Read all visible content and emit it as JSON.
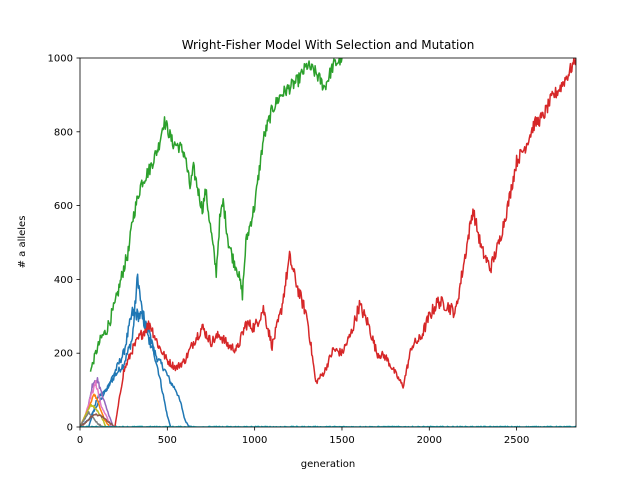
{
  "chart_data": {
    "type": "line",
    "title": "Wright-Fisher Model With Selection and Mutation",
    "xlabel": "generation",
    "ylabel": "# a alleles",
    "xlim": [
      0,
      2840
    ],
    "ylim": [
      0,
      1000
    ],
    "xticks": [
      0,
      500,
      1000,
      1500,
      2000,
      2500
    ],
    "yticks": [
      0,
      200,
      400,
      600,
      800,
      1000
    ],
    "grid": false,
    "colors": {
      "blue": "#1f77b4",
      "orange": "#ff7f0e",
      "green": "#2ca02c",
      "red": "#d62728",
      "purple": "#9467bd",
      "brown": "#8c564b",
      "pink": "#e377c2",
      "gray": "#7f7f7f",
      "olive": "#bcbd22",
      "cyan": "#17becf"
    },
    "series": [
      {
        "color_key": "blue",
        "x": [
          0,
          50,
          100,
          150,
          200,
          250,
          300,
          330,
          350,
          380,
          400,
          430,
          450,
          480,
          500,
          520,
          550,
          580,
          600,
          620,
          640
        ],
        "y": [
          0,
          20,
          60,
          100,
          140,
          170,
          240,
          410,
          330,
          260,
          230,
          200,
          180,
          160,
          140,
          120,
          100,
          60,
          20,
          5,
          0
        ]
      },
      {
        "color_key": "blue",
        "x": [
          50,
          100,
          150,
          200,
          250,
          300,
          350,
          400,
          450,
          500,
          520
        ],
        "y": [
          0,
          80,
          100,
          150,
          200,
          310,
          300,
          250,
          150,
          30,
          0
        ]
      },
      {
        "color_key": "green",
        "x": [
          60,
          90,
          120,
          150,
          200,
          250,
          280,
          300,
          330,
          350,
          400,
          450,
          480,
          500,
          530,
          570,
          600,
          630,
          650,
          700,
          720,
          750,
          780,
          800,
          820,
          850,
          880,
          900,
          930,
          950,
          1000,
          1050,
          1100,
          1150,
          1200,
          1250,
          1300,
          1350,
          1400,
          1450,
          1500
        ],
        "y": [
          150,
          200,
          240,
          260,
          330,
          430,
          480,
          560,
          620,
          660,
          700,
          760,
          830,
          810,
          770,
          760,
          740,
          650,
          700,
          590,
          640,
          530,
          420,
          560,
          610,
          500,
          450,
          430,
          360,
          500,
          600,
          780,
          860,
          900,
          920,
          940,
          980,
          960,
          920,
          980,
          1000
        ]
      },
      {
        "color_key": "red",
        "x": [
          200,
          250,
          300,
          350,
          400,
          450,
          500,
          550,
          600,
          650,
          700,
          750,
          800,
          850,
          900,
          950,
          1000,
          1050,
          1100,
          1150,
          1200,
          1250,
          1300,
          1350,
          1400,
          1450,
          1500,
          1550,
          1600,
          1650,
          1700,
          1750,
          1800,
          1850,
          1900,
          1950,
          2000,
          2050,
          2100,
          2150,
          2200,
          2250,
          2300,
          2350,
          2400,
          2450,
          2500,
          2550,
          2600,
          2650,
          2700,
          2750,
          2800,
          2840
        ],
        "y": [
          0,
          150,
          210,
          250,
          280,
          220,
          180,
          160,
          180,
          230,
          270,
          230,
          250,
          220,
          210,
          280,
          270,
          320,
          220,
          310,
          460,
          370,
          300,
          120,
          150,
          210,
          200,
          250,
          330,
          280,
          200,
          190,
          150,
          110,
          220,
          240,
          300,
          340,
          330,
          310,
          450,
          590,
          480,
          430,
          500,
          600,
          720,
          760,
          820,
          840,
          890,
          920,
          960,
          1000
        ]
      },
      {
        "color_key": "purple",
        "x": [
          0,
          40,
          70,
          100,
          130,
          160,
          190
        ],
        "y": [
          0,
          40,
          110,
          130,
          80,
          40,
          0
        ]
      },
      {
        "color_key": "pink",
        "x": [
          0,
          30,
          60,
          90,
          120,
          150,
          180
        ],
        "y": [
          0,
          30,
          80,
          120,
          60,
          30,
          0
        ]
      },
      {
        "color_key": "orange",
        "x": [
          0,
          20,
          50,
          80,
          110,
          140,
          170
        ],
        "y": [
          0,
          20,
          50,
          90,
          60,
          20,
          0
        ]
      },
      {
        "color_key": "olive",
        "x": [
          0,
          30,
          60,
          90,
          120,
          150
        ],
        "y": [
          0,
          30,
          60,
          50,
          30,
          0
        ]
      },
      {
        "color_key": "gray",
        "x": [
          0,
          25,
          50,
          75,
          100,
          130
        ],
        "y": [
          0,
          20,
          40,
          25,
          10,
          0
        ]
      },
      {
        "color_key": "brown",
        "x": [
          0,
          40,
          80,
          120,
          160,
          200
        ],
        "y": [
          0,
          15,
          35,
          30,
          15,
          0
        ]
      },
      {
        "color_key": "cyan",
        "x": [
          0,
          500,
          1000,
          1500,
          2000,
          2500,
          2840
        ],
        "y": [
          0,
          0,
          0,
          0,
          0,
          0,
          0
        ]
      }
    ]
  }
}
